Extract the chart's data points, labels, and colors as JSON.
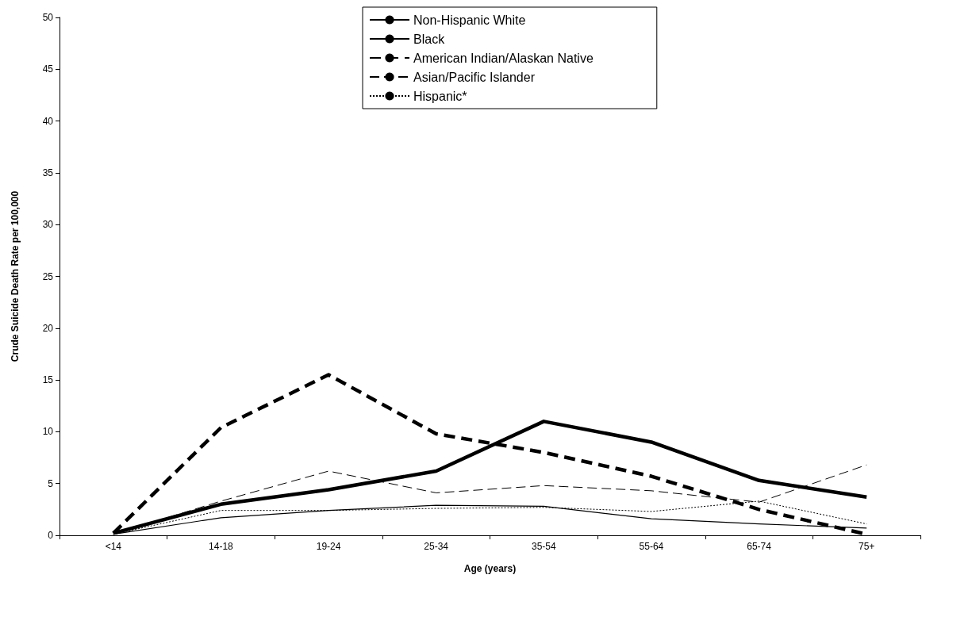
{
  "chart_data": {
    "type": "line",
    "xlabel": "Age (years)",
    "ylabel": "Crude Suicide Death Rate per 100,000",
    "categories": [
      "<14",
      "14-18",
      "19-24",
      "25-34",
      "35-54",
      "55-64",
      "65-74",
      "75+"
    ],
    "series": [
      {
        "name": "Non-Hispanic White",
        "color": "#000000",
        "line_style": "solid",
        "values": [
          0.2,
          3.0,
          4.4,
          6.2,
          11.0,
          9.0,
          5.3,
          3.7
        ]
      },
      {
        "name": "Black",
        "color": "#000000",
        "line_style": "solid",
        "values": [
          0.1,
          1.7,
          2.4,
          2.9,
          2.8,
          1.6,
          1.1,
          0.7
        ]
      },
      {
        "name": "American Indian/Alaskan Native",
        "color": "#000000",
        "line_style": "dashed",
        "values": [
          0.2,
          10.4,
          15.5,
          9.8,
          8.0,
          5.7,
          2.5,
          0.1
        ]
      },
      {
        "name": "Asian/Pacific Islander",
        "color": "#000000",
        "line_style": "dashed",
        "values": [
          0.1,
          3.3,
          6.2,
          4.1,
          4.8,
          4.3,
          3.2,
          6.8
        ]
      },
      {
        "name": "Hispanic*",
        "color": "#000000",
        "line_style": "dotted",
        "values": [
          0.1,
          2.4,
          2.4,
          2.6,
          2.7,
          2.3,
          3.3,
          1.1
        ]
      }
    ],
    "ylim": [
      0,
      50
    ],
    "yticks": [
      0,
      5,
      10,
      15,
      20,
      25,
      30,
      35,
      40,
      45,
      50
    ],
    "grid": false,
    "legend": "top",
    "marker": "none"
  }
}
